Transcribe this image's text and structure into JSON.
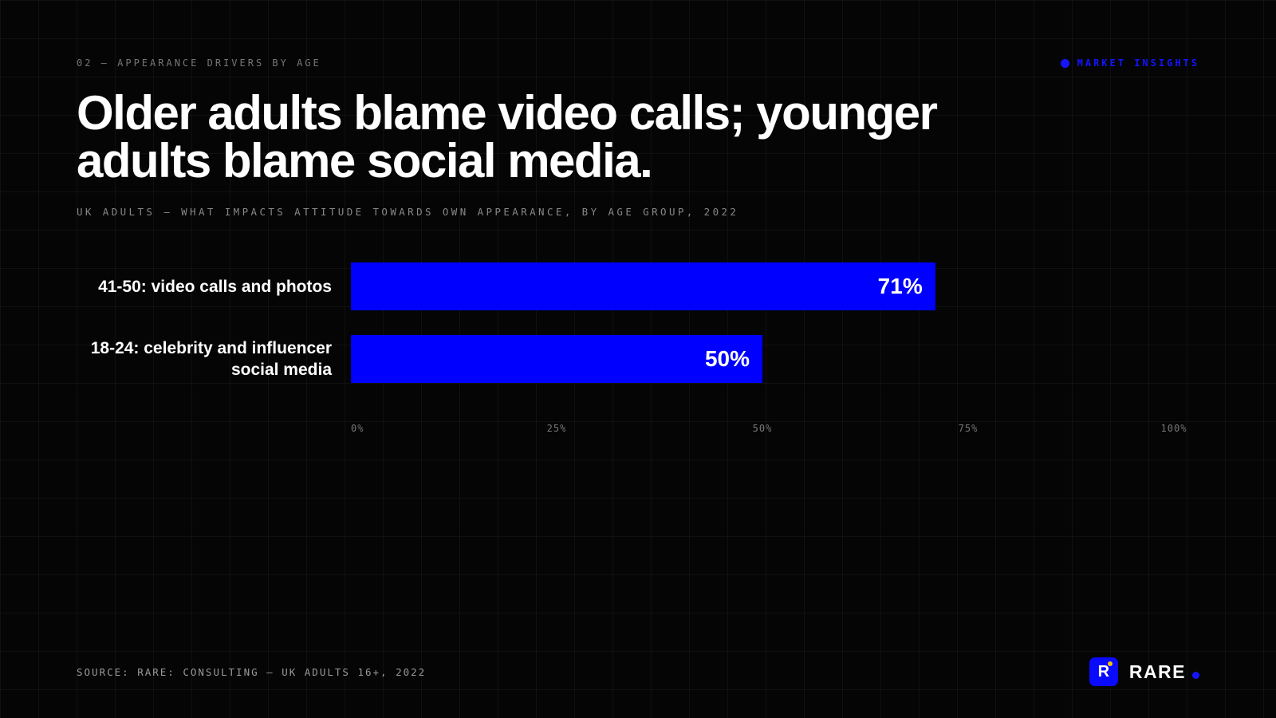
{
  "header": {
    "eyebrow": "02 — APPEARANCE DRIVERS BY AGE",
    "tag": "MARKET INSIGHTS"
  },
  "chart_data": {
    "type": "hbar",
    "title": "Older adults blame video calls; younger adults blame social media.",
    "subtitle": "UK ADULTS — WHAT IMPACTS ATTITUDE TOWARDS OWN APPEARANCE, BY AGE GROUP, 2022",
    "categories": [
      "41-50: video calls and photos",
      "18-24: celebrity and influencer social media"
    ],
    "values": [
      71,
      50
    ],
    "value_labels": [
      "71%",
      "50%"
    ],
    "color": "#0000ff",
    "xlim": [
      0,
      100
    ],
    "xticks": [
      {
        "value": 0,
        "label": "0%"
      },
      {
        "value": 25,
        "label": "25%"
      },
      {
        "value": 50,
        "label": "50%"
      },
      {
        "value": 75,
        "label": "75%"
      },
      {
        "value": 100,
        "label": "100%"
      }
    ]
  },
  "footer": {
    "source": "SOURCE: RARE: CONSULTING — UK ADULTS 16+, 2022",
    "brand_mark": "R",
    "brand": "RARE"
  }
}
